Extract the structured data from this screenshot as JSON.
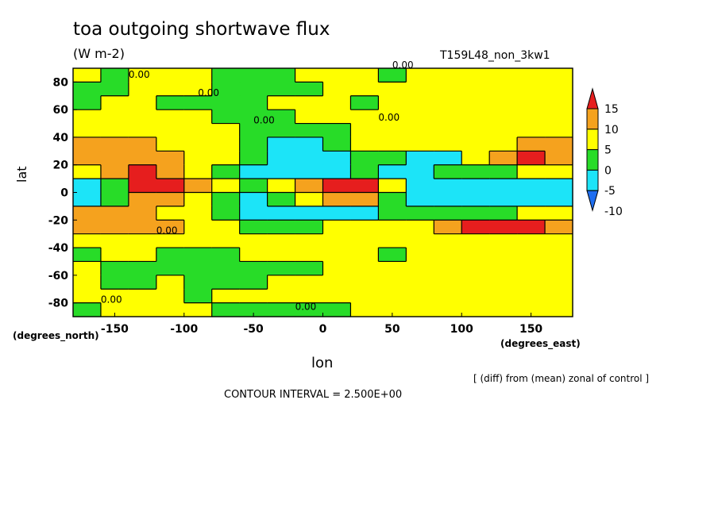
{
  "title": "toa outgoing shortwave flux",
  "units": "(W m-2)",
  "run_name": "T159L48_non_3kw1",
  "y_axis_title": "lat",
  "y_coord_name": "(degrees_north)",
  "x_coord_name": "(degrees_east)",
  "x_axis_title": "lon",
  "note": "[ (diff) from (mean) zonal of control ]",
  "contour_interval": "CONTOUR INTERVAL = 2.500E+00",
  "chart_data": {
    "type": "heatmap",
    "title": "toa outgoing shortwave flux",
    "subtitle": "(W m-2)",
    "xlabel": "lon",
    "ylabel": "lat",
    "xlim": [
      -180,
      180
    ],
    "ylim": [
      -90,
      90
    ],
    "x_ticks": [
      -150,
      -100,
      -50,
      0,
      50,
      100,
      150
    ],
    "y_ticks": [
      80,
      60,
      40,
      20,
      0,
      -20,
      -40,
      -60,
      -80
    ],
    "contour_interval": 2.5,
    "colorbar": {
      "labels": [
        "15",
        "10",
        "5",
        "0",
        "-5",
        "-10"
      ],
      "levels": [
        -10,
        -5,
        0,
        5,
        10,
        15
      ],
      "colors": [
        "#1f6ef0",
        "#1ce4f8",
        "#28dc28",
        "#ffff00",
        "#f5a21e",
        "#e61e1e"
      ]
    },
    "contour_labels": [
      "0.00"
    ],
    "field": {
      "lat": [
        85,
        75,
        65,
        55,
        45,
        35,
        25,
        15,
        5,
        -5,
        -15,
        -25,
        -35,
        -45,
        -55,
        -65,
        -75,
        -85
      ],
      "lon": [
        -170,
        -150,
        -130,
        -110,
        -90,
        -70,
        -50,
        -30,
        -10,
        10,
        30,
        50,
        70,
        90,
        110,
        130,
        150,
        170
      ],
      "values": [
        [
          0,
          -2,
          0,
          0,
          0,
          -3,
          -3,
          -2,
          0,
          0,
          0,
          -3,
          0,
          0,
          0,
          0,
          0,
          0
        ],
        [
          -3,
          -3,
          0,
          0,
          0,
          -3,
          -3,
          -3,
          -3,
          0,
          0,
          0,
          0,
          0,
          0,
          0,
          0,
          0
        ],
        [
          -3,
          0,
          0,
          -3,
          -3,
          -3,
          -3,
          0,
          0,
          0,
          -3,
          0,
          0,
          0,
          0,
          0,
          0,
          0
        ],
        [
          0,
          0,
          0,
          0,
          0,
          -3,
          -3,
          -3,
          0,
          0,
          0,
          0,
          0,
          0,
          0,
          0,
          0,
          0
        ],
        [
          0,
          0,
          0,
          0,
          0,
          0,
          -3,
          -3,
          -3,
          -3,
          0,
          0,
          0,
          0,
          0,
          0,
          0,
          0
        ],
        [
          8,
          8,
          8,
          3,
          0,
          0,
          -3,
          -6,
          -6,
          -3,
          0,
          0,
          3,
          3,
          3,
          3,
          8,
          8
        ],
        [
          8,
          8,
          8,
          8,
          3,
          3,
          -3,
          -6,
          -8,
          -6,
          -3,
          -3,
          -6,
          -6,
          3,
          8,
          13,
          8
        ],
        [
          3,
          8,
          13,
          8,
          3,
          -3,
          -6,
          -8,
          -8,
          -6,
          -3,
          -6,
          -6,
          -3,
          -3,
          -3,
          3,
          3
        ],
        [
          -8,
          -3,
          13,
          13,
          8,
          3,
          -3,
          3,
          8,
          13,
          13,
          3,
          -8,
          -8,
          -8,
          -8,
          -8,
          -8
        ],
        [
          -8,
          -3,
          8,
          8,
          3,
          -3,
          -6,
          -3,
          3,
          8,
          8,
          -3,
          -8,
          -8,
          -8,
          -8,
          -8,
          -8
        ],
        [
          8,
          8,
          8,
          3,
          3,
          -3,
          -6,
          -8,
          -6,
          -6,
          -6,
          -3,
          -3,
          -3,
          -3,
          -3,
          3,
          3
        ],
        [
          8,
          8,
          8,
          8,
          3,
          3,
          -3,
          -3,
          -3,
          0,
          3,
          3,
          3,
          8,
          13,
          13,
          13,
          8
        ],
        [
          3,
          3,
          3,
          0,
          0,
          0,
          0,
          0,
          0,
          0,
          0,
          0,
          0,
          0,
          3,
          3,
          3,
          3
        ],
        [
          -3,
          0,
          0,
          -3,
          -3,
          -3,
          0,
          0,
          0,
          0,
          0,
          -3,
          0,
          0,
          0,
          0,
          0,
          0
        ],
        [
          0,
          -3,
          -3,
          -3,
          -3,
          -3,
          -3,
          -3,
          -3,
          0,
          0,
          0,
          0,
          0,
          0,
          0,
          0,
          0
        ],
        [
          0,
          -3,
          -3,
          0,
          -3,
          -3,
          -3,
          0,
          0,
          0,
          0,
          0,
          0,
          0,
          0,
          0,
          0,
          0
        ],
        [
          0,
          0,
          0,
          0,
          -3,
          0,
          0,
          0,
          0,
          0,
          0,
          0,
          0,
          0,
          0,
          0,
          0,
          0
        ],
        [
          -3,
          0,
          0,
          0,
          0,
          -3,
          -3,
          -3,
          -3,
          -3,
          0,
          0,
          0,
          0,
          0,
          0,
          0,
          0
        ]
      ]
    }
  }
}
